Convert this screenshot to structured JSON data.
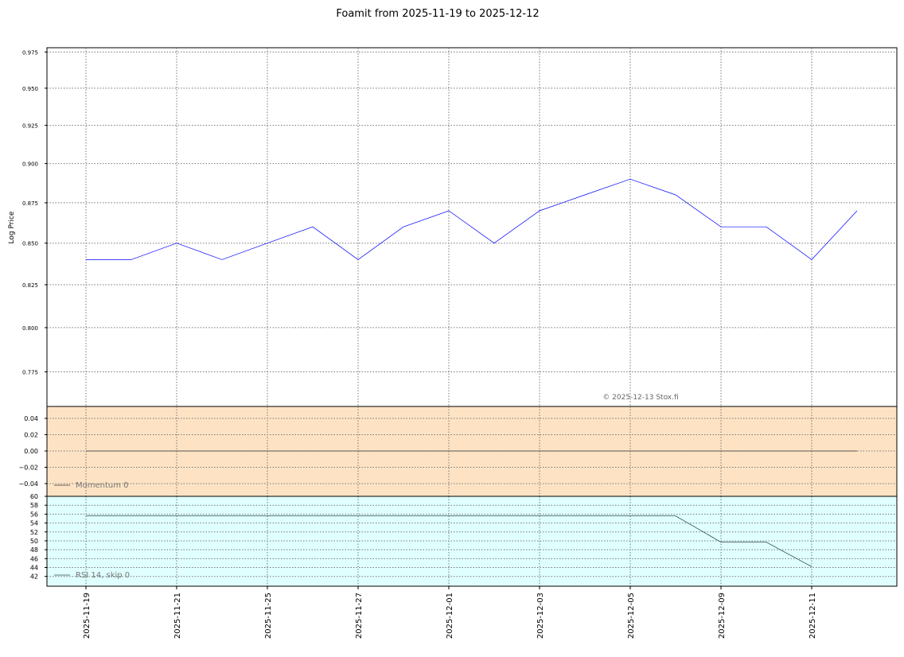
{
  "chart_data": [
    {
      "type": "line",
      "title": "Foamit from 2025-11-19 to 2025-12-12",
      "ylabel": "Log Price",
      "yscale": "log",
      "ylim": [
        0.756,
        0.978
      ],
      "yticks": [
        "0.775",
        "0.800",
        "0.825",
        "0.850",
        "0.875",
        "0.900",
        "0.925",
        "0.950",
        "0.975"
      ],
      "x": [
        "2025-11-19",
        "2025-11-20",
        "2025-11-21",
        "2025-11-24",
        "2025-11-25",
        "2025-11-26",
        "2025-11-27",
        "2025-11-28",
        "2025-12-01",
        "2025-12-02",
        "2025-12-03",
        "2025-12-04",
        "2025-12-05",
        "2025-12-08",
        "2025-12-09",
        "2025-12-10",
        "2025-12-11",
        "2025-12-12"
      ],
      "series": [
        {
          "name": "Price",
          "color": "#0000ff",
          "values": [
            0.84,
            0.84,
            0.85,
            0.84,
            0.85,
            0.86,
            0.84,
            0.86,
            0.87,
            0.85,
            0.87,
            0.88,
            0.89,
            0.88,
            0.86,
            0.86,
            0.84,
            0.87
          ]
        }
      ],
      "annotation": "© 2025-12-13 Stox.fi",
      "grid": true
    },
    {
      "type": "line",
      "background": "#fde3c4",
      "ylim": [
        -0.0556,
        0.0546
      ],
      "yticks": [
        "0.04",
        "0.02",
        "0.00",
        "−0.02",
        "−0.04"
      ],
      "ytick_values": [
        0.04,
        0.02,
        0,
        -0.02,
        -0.04
      ],
      "series": [
        {
          "name": "Momentum 0",
          "color": "#333333",
          "values": [
            0,
            0,
            0,
            0,
            0,
            0,
            0,
            0,
            0,
            0,
            0,
            0,
            0,
            0,
            0,
            0,
            0,
            0
          ]
        }
      ],
      "legend": "bottom-left",
      "grid": true
    },
    {
      "type": "line",
      "background": "#e0ffff",
      "ylim": [
        39.8,
        60
      ],
      "yticks": [
        "60",
        "58",
        "56",
        "54",
        "52",
        "50",
        "48",
        "46",
        "44",
        "42"
      ],
      "ytick_values": [
        60,
        58,
        56,
        54,
        52,
        50,
        48,
        46,
        44,
        42
      ],
      "series": [
        {
          "name": "RSI 14, skip 0",
          "color": "#2f4f4f",
          "values": [
            55.6,
            55.6,
            55.6,
            55.6,
            55.6,
            55.6,
            55.6,
            55.6,
            55.6,
            55.6,
            55.6,
            55.6,
            55.6,
            55.6,
            49.7,
            49.7,
            44.2,
            null
          ]
        }
      ],
      "legend": "bottom-left",
      "grid": true
    }
  ],
  "xticks": [
    "2025-11-19",
    "2025-11-21",
    "2025-11-25",
    "2025-11-27",
    "2025-12-01",
    "2025-12-03",
    "2025-12-05",
    "2025-12-09",
    "2025-12-11"
  ]
}
